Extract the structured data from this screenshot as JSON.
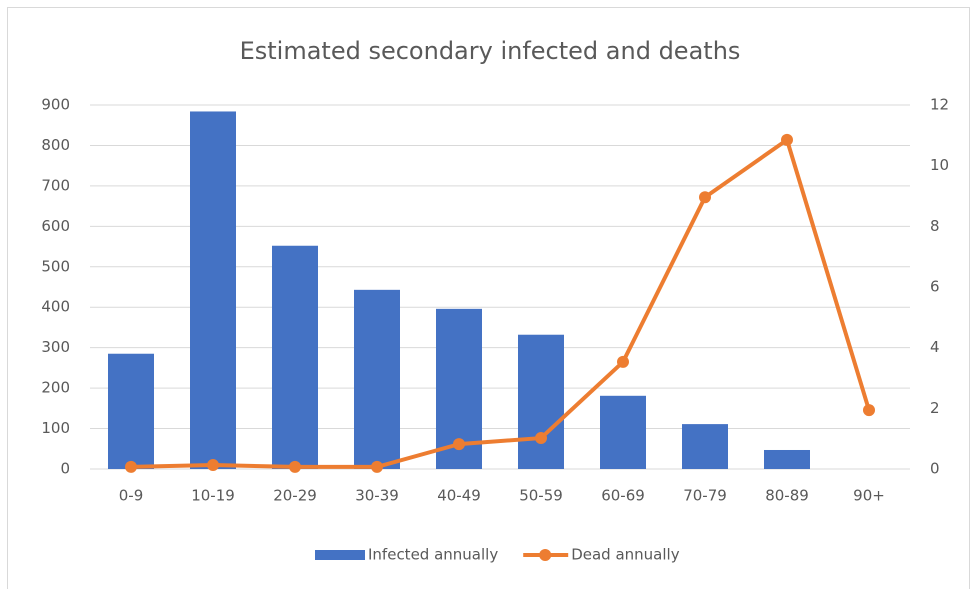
{
  "chart_data": {
    "type": "bar",
    "title": "Estimated secondary infected and deaths",
    "categories": [
      "0-9",
      "10-19",
      "20-29",
      "30-39",
      "40-49",
      "50-59",
      "60-69",
      "70-79",
      "80-89",
      "90+"
    ],
    "series": [
      {
        "name": "Infected annually",
        "type": "bar",
        "color": "#4472c4",
        "values": [
          285,
          884,
          552,
          443,
          396,
          332,
          181,
          111,
          47,
          0
        ]
      },
      {
        "name": "Dead annually",
        "type": "line",
        "axis": "y2",
        "color": "#ed7d31",
        "values": [
          0.07,
          0.13,
          0.07,
          0.07,
          0.82,
          1.02,
          3.53,
          8.96,
          10.85,
          1.94
        ]
      }
    ],
    "ylim": [
      0,
      900
    ],
    "yticks": [
      0,
      100,
      200,
      300,
      400,
      500,
      600,
      700,
      800,
      900
    ],
    "y2lim": [
      0,
      12
    ],
    "y2ticks": [
      0,
      2,
      4,
      6,
      8,
      10,
      12
    ],
    "grid": true,
    "legend": "bottom"
  }
}
